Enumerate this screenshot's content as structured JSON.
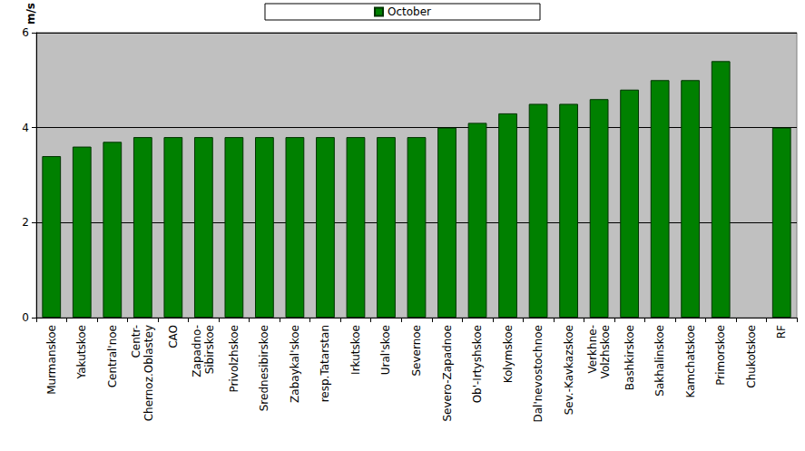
{
  "chart_data": {
    "type": "bar",
    "y_label": "m/s",
    "categories": [
      "Murmanskoe",
      "Yakutskoe",
      "Central'noe",
      "Centr-\nChernoz.Oblastey",
      "CAO",
      "Zapadno-\nSibirskoe",
      "Privolzhskoe",
      "Srednesibirskoe",
      "Zabaykal'skoe",
      "resp.Tatarstan",
      "Irkutskoe",
      "Ural'skoe",
      "Severnoe",
      "Severo-Zapadnoe",
      "Ob'-Irtyshskoe",
      "Kolymskoe",
      "Dal'nevostochnoe",
      "Sev.-Kavkazskoe",
      "Verkhne-\nVolzhskoe",
      "Bashkirskoe",
      "Sakhalinskoe",
      "Kamchatskoe",
      "Primorskoe",
      "Chukotskoe",
      "RF"
    ],
    "series": [
      {
        "name": "October",
        "color": "#008000",
        "values": [
          3.4,
          3.6,
          3.7,
          3.8,
          3.8,
          3.8,
          3.8,
          3.8,
          3.8,
          3.8,
          3.8,
          3.8,
          3.8,
          4.0,
          4.1,
          4.3,
          4.5,
          4.5,
          4.6,
          4.8,
          5.0,
          5.0,
          5.4,
          null,
          4.0
        ]
      }
    ],
    "ylim": [
      0,
      6
    ],
    "yticks": [
      0,
      2,
      4,
      6
    ],
    "grid": true,
    "legend": "top"
  }
}
